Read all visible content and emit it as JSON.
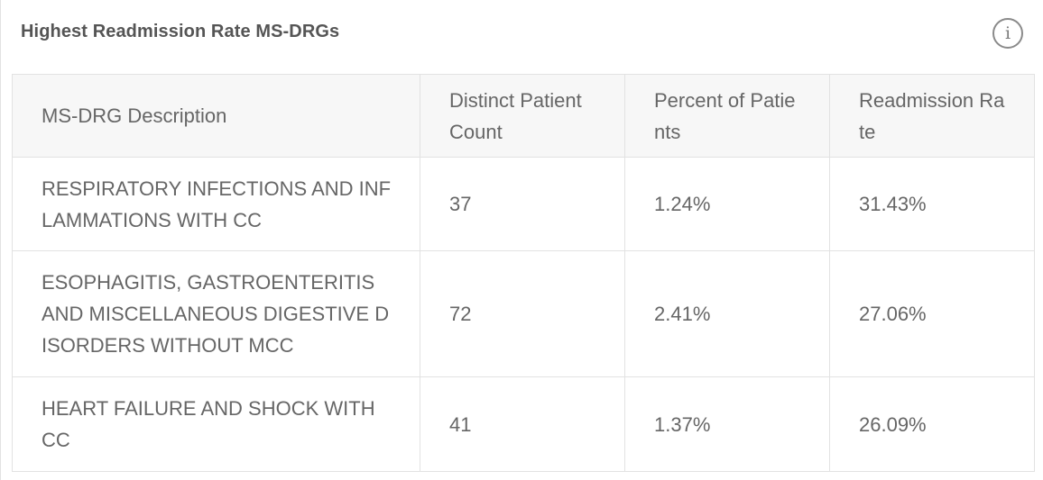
{
  "card": {
    "title": "Highest Readmission Rate MS-DRGs",
    "info_icon": "info-icon",
    "info_glyph": "i"
  },
  "table": {
    "headers": [
      "MS-DRG Description",
      "Distinct Patient Count",
      "Percent of Patients",
      "Readmission Rate"
    ],
    "rows": [
      {
        "description": "RESPIRATORY INFECTIONS AND INFLAMMATIONS WITH CC",
        "patient_count": "37",
        "percent_patients": "1.24%",
        "readmission_rate": "31.43%"
      },
      {
        "description": "ESOPHAGITIS, GASTROENTERITIS AND MISCELLANEOUS DIGESTIVE DISORDERS WITHOUT MCC",
        "patient_count": "72",
        "percent_patients": "2.41%",
        "readmission_rate": "27.06%"
      },
      {
        "description": "HEART FAILURE AND SHOCK WITH CC",
        "patient_count": "41",
        "percent_patients": "1.37%",
        "readmission_rate": "26.09%"
      }
    ]
  },
  "colors": {
    "border": "#e2e2e2",
    "header_bg": "#f7f7f7",
    "text": "#666666",
    "title": "#555555"
  }
}
